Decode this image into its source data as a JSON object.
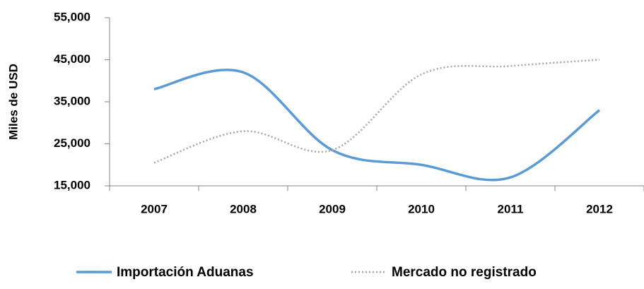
{
  "chart_data": {
    "type": "line",
    "y_label": "Miles de USD",
    "categories": [
      "2007",
      "2008",
      "2009",
      "2010",
      "2011",
      "2012"
    ],
    "series": [
      {
        "name": "Importación Aduanas",
        "color": "#5b9bd5",
        "style": "solid",
        "values": [
          38000,
          42000,
          23500,
          20000,
          17000,
          33000
        ]
      },
      {
        "name": "Mercado no registrado",
        "color": "#a6a6a6",
        "style": "dotted",
        "values": [
          20500,
          28000,
          23500,
          41500,
          43500,
          45000
        ]
      }
    ],
    "ylim": [
      15000,
      55000
    ],
    "yticks": [
      {
        "value": 15000,
        "label": "15,000"
      },
      {
        "value": 25000,
        "label": "25,000"
      },
      {
        "value": 35000,
        "label": "35,000"
      },
      {
        "value": 45000,
        "label": "45,000"
      },
      {
        "value": 55000,
        "label": "55,000"
      }
    ],
    "grid": false,
    "smooth": true,
    "legend": "bottom"
  }
}
